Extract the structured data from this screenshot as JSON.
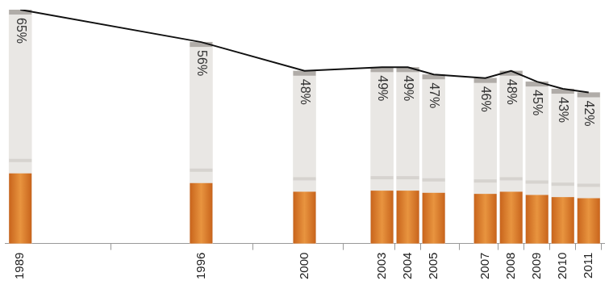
{
  "chart_data": {
    "type": "bar",
    "x": [
      1989,
      1996,
      2000,
      2003,
      2004,
      2005,
      2007,
      2008,
      2009,
      2010,
      2011
    ],
    "values": [
      65,
      56,
      48,
      49,
      49,
      47,
      46,
      48,
      45,
      43,
      42
    ],
    "value_labels": [
      "65%",
      "56%",
      "48%",
      "49%",
      "49%",
      "47%",
      "46%",
      "48%",
      "45%",
      "43%",
      "42%"
    ],
    "color": "#e9e7e4",
    "xlim": [
      1988.4,
      2011.6
    ],
    "xticks": [
      1989,
      1996,
      2000,
      2003,
      2004,
      2005,
      2007,
      2008,
      2009,
      2010,
      2011
    ],
    "ylim": [
      0,
      65
    ],
    "grid": false,
    "data_labels": true,
    "tick_labels": "x"
  }
}
